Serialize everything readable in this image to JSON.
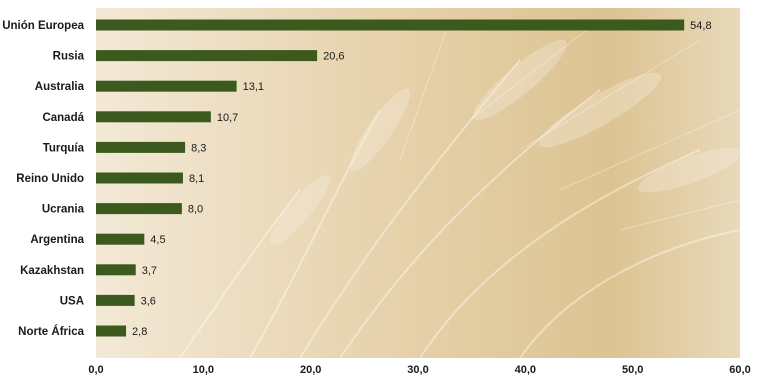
{
  "chart_data": {
    "type": "bar",
    "orientation": "horizontal",
    "title": "",
    "xlabel": "",
    "ylabel": "",
    "categories": [
      "Unión Europea",
      "Rusia",
      "Australia",
      "Canadá",
      "Turquía",
      "Reino Unido",
      "Ucrania",
      "Argentina",
      "Kazakhstan",
      "USA",
      "Norte África"
    ],
    "values": [
      54.8,
      20.6,
      13.1,
      10.7,
      8.3,
      8.1,
      8.0,
      4.5,
      3.7,
      3.6,
      2.8
    ],
    "value_labels": [
      "54,8",
      "20,6",
      "13,1",
      "10,7",
      "8,3",
      "8,1",
      "8,0",
      "4,5",
      "3,7",
      "3,6",
      "2,8"
    ],
    "xlim": [
      0,
      60
    ],
    "xticks": [
      0,
      10,
      20,
      30,
      40,
      50,
      60
    ],
    "xtick_labels": [
      "0,0",
      "10,0",
      "20,0",
      "30,0",
      "40,0",
      "50,0",
      "60,0"
    ],
    "grid": false,
    "legend": "none",
    "bar_color": "#3d5a1e",
    "background": "photo of golden wheat ears"
  }
}
